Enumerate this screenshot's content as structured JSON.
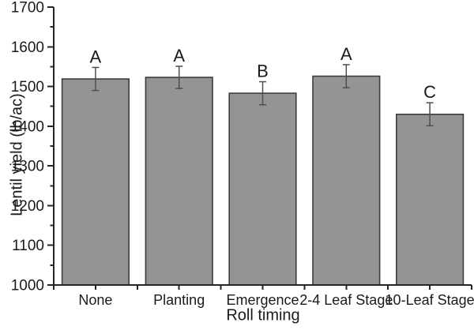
{
  "figure": {
    "background": "#ffffff"
  },
  "chart_data": {
    "type": "bar",
    "title": "",
    "categories": [
      "None",
      "Planting",
      "Emergence",
      "2-4 Leaf Stage",
      "10-Leaf Stage"
    ],
    "values": [
      1519,
      1523,
      1483,
      1526,
      1430
    ],
    "errors": [
      29,
      28,
      29,
      29,
      29
    ],
    "significance_letters": [
      "A",
      "A",
      "B",
      "A",
      "C"
    ],
    "xlabel": "Roll timing",
    "ylabel": "Lentil yield (lb/ac)",
    "ylim": [
      1000,
      1700
    ],
    "y_major_step": 100,
    "y_minor_step": 50,
    "y_tick_labels": [
      "1000",
      "1100",
      "1200",
      "1300",
      "1400",
      "1500",
      "1600",
      "1700"
    ],
    "grid": "off",
    "legend": "none",
    "colors": {
      "bar_fill": "#949494",
      "bar_stroke": "#3d3d3d",
      "error_bar": "#4f4f4f",
      "axis": "#262626",
      "text": "#1a1a1a"
    }
  }
}
